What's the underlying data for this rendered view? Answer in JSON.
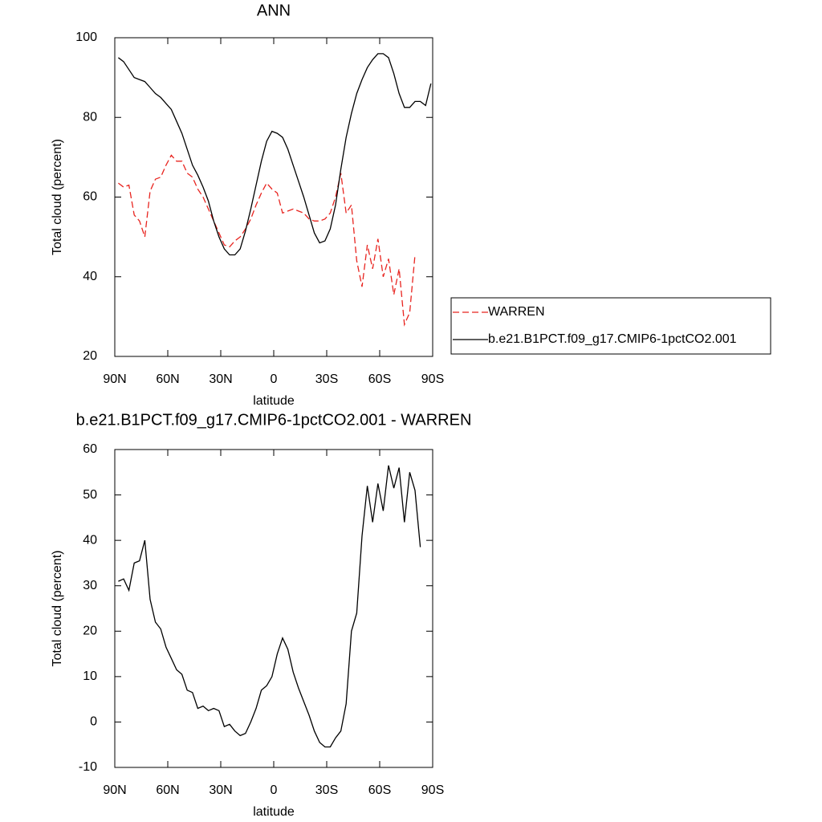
{
  "chart_data": [
    {
      "type": "line",
      "title": "ANN",
      "x_label": "latitude",
      "y_label": "Total cloud (percent)",
      "x": [
        88,
        85,
        82,
        79,
        76,
        73,
        70,
        67,
        64,
        61,
        58,
        55,
        52,
        49,
        46,
        43,
        40,
        37,
        34,
        31,
        28,
        25,
        22,
        19,
        16,
        13,
        10,
        7,
        4,
        1,
        -2,
        -5,
        -8,
        -11,
        -14,
        -17,
        -20,
        -23,
        -26,
        -29,
        -32,
        -35,
        -38,
        -41,
        -44,
        -47,
        -50,
        -53,
        -56,
        -59,
        -62,
        -65,
        -68,
        -71,
        -74,
        -77,
        -80,
        -83,
        -86,
        -89
      ],
      "series": [
        {
          "name": "WARREN",
          "color": "#e8241f",
          "dash": true,
          "values": [
            63.5,
            62.5,
            63,
            55.5,
            54,
            50,
            61.5,
            64.5,
            65,
            68,
            70.5,
            69,
            69,
            66,
            65,
            62,
            60,
            57,
            54,
            51,
            48,
            47.5,
            49,
            50,
            52,
            54.5,
            58,
            61,
            63.5,
            62,
            61,
            56,
            56.5,
            57,
            56.5,
            56,
            54.5,
            54,
            54,
            54.5,
            56,
            60,
            66,
            56,
            58,
            44,
            37.5,
            48,
            42,
            49.5,
            40,
            44.5,
            35.5,
            42,
            28,
            31,
            45.5,
            null,
            null,
            null
          ]
        },
        {
          "name": "b.e21.B1PCT.f09_g17.CMIP6-1pctCO2.001",
          "color": "#000000",
          "dash": false,
          "values": [
            95,
            94,
            92,
            90,
            89.5,
            89,
            87.5,
            86,
            85,
            83.5,
            82,
            79,
            76,
            72,
            68,
            65.5,
            62.5,
            59,
            54,
            50,
            47,
            45.5,
            45.5,
            47,
            51.5,
            57,
            63,
            69,
            74,
            76.5,
            76,
            75,
            72,
            68,
            64,
            60,
            55.5,
            51,
            48.5,
            49,
            52,
            58,
            67,
            75,
            81,
            86,
            89.5,
            92.5,
            94.5,
            96,
            96,
            95,
            91,
            86,
            82.5,
            82.5,
            84,
            84,
            83,
            88.5
          ]
        }
      ],
      "xlim": [
        90,
        -90
      ],
      "xticks": [
        {
          "value": 90,
          "label": "90N"
        },
        {
          "value": 60,
          "label": "60N"
        },
        {
          "value": 30,
          "label": "30N"
        },
        0,
        {
          "value": -30,
          "label": "30S"
        },
        {
          "value": -60,
          "label": "60S"
        },
        {
          "value": -90,
          "label": "90S"
        }
      ],
      "ylim": [
        20,
        100
      ],
      "yticks": [
        20,
        40,
        60,
        80,
        100
      ],
      "legend": "outside-right"
    },
    {
      "type": "line",
      "title": "b.e21.B1PCT.f09_g17.CMIP6-1pctCO2.001 - WARREN",
      "x_label": "latitude",
      "y_label": "Total cloud (percent)",
      "x": [
        88,
        85,
        82,
        79,
        76,
        73,
        70,
        67,
        64,
        61,
        58,
        55,
        52,
        49,
        46,
        43,
        40,
        37,
        34,
        31,
        28,
        25,
        22,
        19,
        16,
        13,
        10,
        7,
        4,
        1,
        -2,
        -5,
        -8,
        -11,
        -14,
        -17,
        -20,
        -23,
        -26,
        -29,
        -32,
        -35,
        -38,
        -41,
        -44,
        -47,
        -50,
        -53,
        -56,
        -59,
        -62,
        -65,
        -68,
        -71,
        -74,
        -77,
        -80,
        -83,
        -86,
        -89
      ],
      "series": [
        {
          "color": "#000000",
          "dash": false,
          "values": [
            31,
            31.5,
            29,
            35,
            35.5,
            40,
            27,
            22,
            20.5,
            16.5,
            14,
            11.5,
            10.5,
            7,
            6.5,
            3,
            3.5,
            2.5,
            3,
            2.5,
            -1,
            -0.5,
            -2,
            -3,
            -2.5,
            0,
            3,
            7,
            8,
            10,
            15,
            18.5,
            16,
            11,
            7.5,
            4.5,
            1.5,
            -2,
            -4.5,
            -5.5,
            -5.5,
            -3.5,
            -2,
            4,
            20,
            24,
            41,
            52,
            44,
            52.5,
            46.5,
            56.5,
            51.5,
            56,
            44,
            55,
            51,
            38.5,
            null,
            null
          ]
        }
      ],
      "xlim": [
        90,
        -90
      ],
      "xticks": [
        {
          "value": 90,
          "label": "90N"
        },
        {
          "value": 60,
          "label": "60N"
        },
        {
          "value": 30,
          "label": "30N"
        },
        0,
        {
          "value": -30,
          "label": "30S"
        },
        {
          "value": -60,
          "label": "60S"
        },
        {
          "value": -90,
          "label": "90S"
        }
      ],
      "ylim": [
        -10,
        60
      ],
      "yticks": [
        -10,
        0,
        10,
        20,
        30,
        40,
        50,
        60
      ]
    }
  ]
}
